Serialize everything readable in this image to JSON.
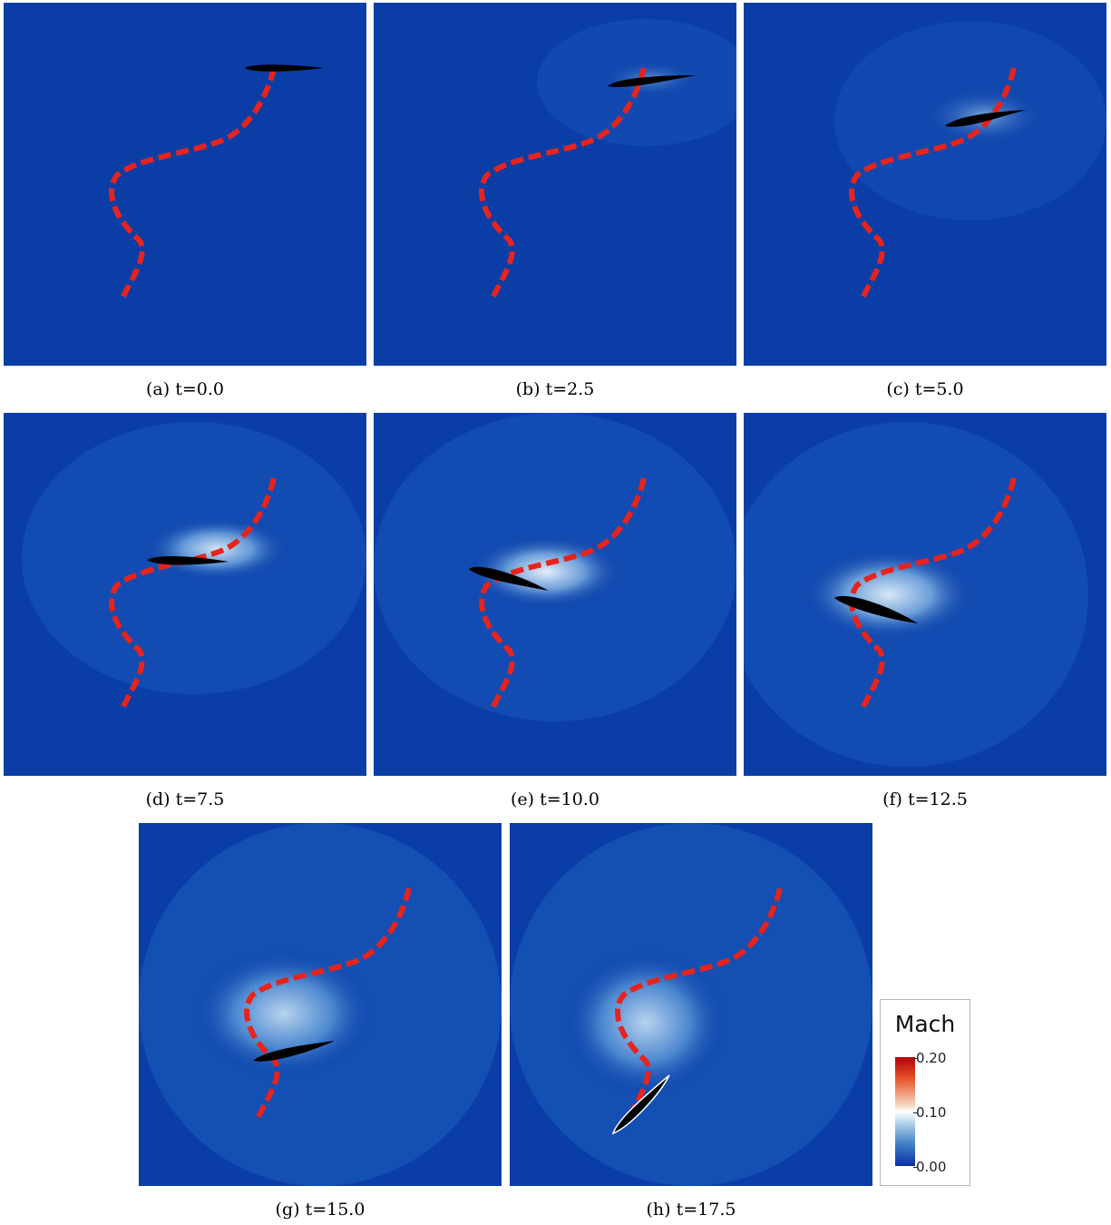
{
  "panels": [
    {
      "caption": "(a) t=0.0"
    },
    {
      "caption": "(b) t=2.5"
    },
    {
      "caption": "(c) t=5.0"
    },
    {
      "caption": "(d) t=7.5"
    },
    {
      "caption": "(e) t=10.0"
    },
    {
      "caption": "(f) t=12.5"
    },
    {
      "caption": "(g) t=15.0"
    },
    {
      "caption": "(h) t=17.5"
    }
  ],
  "legend": {
    "title": "Mach",
    "ticks": [
      "0.20",
      "0.10",
      "0.00"
    ]
  },
  "colors": {
    "field_background": "#0a3ea6",
    "path": "#e8231c",
    "airfoil": "#000000"
  }
}
